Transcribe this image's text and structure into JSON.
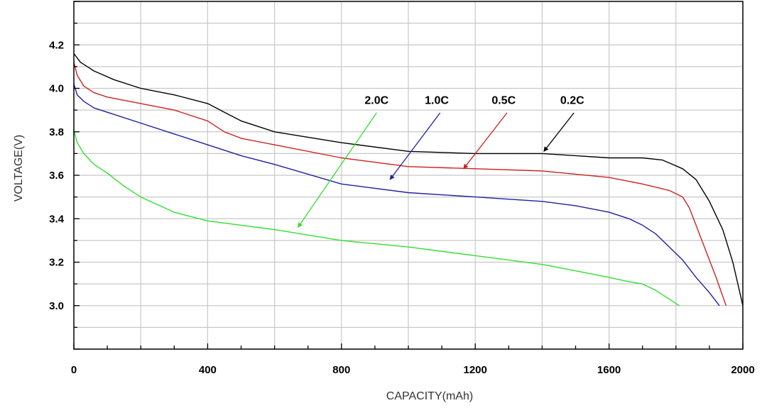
{
  "chart_data": {
    "type": "line",
    "title": "",
    "xlabel": "CAPACITY(mAh)",
    "ylabel": "VOLTAGE(V)",
    "xlim": [
      0,
      2000
    ],
    "ylim": [
      2.8,
      4.4
    ],
    "x_ticks": [
      0,
      400,
      800,
      1200,
      1600,
      2000
    ],
    "x_tick_labels": [
      "0",
      "400",
      "800",
      "1200",
      "1600",
      "2000"
    ],
    "y_ticks": [
      3.0,
      3.2,
      3.4,
      3.6,
      3.8,
      4.0,
      4.2
    ],
    "y_tick_labels": [
      "3.0",
      "3.2",
      "3.4",
      "3.6",
      "3.8",
      "4.0",
      "4.2"
    ],
    "grid": true,
    "legend": "inline labels with arrows",
    "series": [
      {
        "name": "0.2C",
        "color": "#000000",
        "points": [
          [
            0,
            4.16
          ],
          [
            20,
            4.12
          ],
          [
            60,
            4.08
          ],
          [
            120,
            4.04
          ],
          [
            200,
            4.0
          ],
          [
            300,
            3.97
          ],
          [
            400,
            3.93
          ],
          [
            450,
            3.89
          ],
          [
            500,
            3.85
          ],
          [
            600,
            3.8
          ],
          [
            800,
            3.75
          ],
          [
            1000,
            3.71
          ],
          [
            1200,
            3.7
          ],
          [
            1400,
            3.7
          ],
          [
            1500,
            3.69
          ],
          [
            1600,
            3.68
          ],
          [
            1700,
            3.68
          ],
          [
            1760,
            3.67
          ],
          [
            1820,
            3.63
          ],
          [
            1860,
            3.58
          ],
          [
            1900,
            3.48
          ],
          [
            1940,
            3.35
          ],
          [
            1970,
            3.2
          ],
          [
            2000,
            3.0
          ]
        ]
      },
      {
        "name": "0.5C",
        "color": "#cc2222",
        "points": [
          [
            0,
            4.12
          ],
          [
            10,
            4.06
          ],
          [
            30,
            4.01
          ],
          [
            60,
            3.98
          ],
          [
            100,
            3.96
          ],
          [
            200,
            3.93
          ],
          [
            300,
            3.9
          ],
          [
            400,
            3.85
          ],
          [
            450,
            3.8
          ],
          [
            500,
            3.77
          ],
          [
            600,
            3.74
          ],
          [
            800,
            3.68
          ],
          [
            1000,
            3.64
          ],
          [
            1200,
            3.63
          ],
          [
            1400,
            3.62
          ],
          [
            1600,
            3.59
          ],
          [
            1700,
            3.56
          ],
          [
            1780,
            3.53
          ],
          [
            1820,
            3.5
          ],
          [
            1840,
            3.45
          ],
          [
            1860,
            3.37
          ],
          [
            1890,
            3.25
          ],
          [
            1920,
            3.13
          ],
          [
            1950,
            3.0
          ]
        ]
      },
      {
        "name": "1.0C",
        "color": "#1f1fa0",
        "points": [
          [
            0,
            4.02
          ],
          [
            10,
            3.97
          ],
          [
            30,
            3.94
          ],
          [
            60,
            3.91
          ],
          [
            100,
            3.89
          ],
          [
            200,
            3.84
          ],
          [
            300,
            3.79
          ],
          [
            400,
            3.74
          ],
          [
            500,
            3.69
          ],
          [
            600,
            3.65
          ],
          [
            800,
            3.56
          ],
          [
            1000,
            3.52
          ],
          [
            1200,
            3.5
          ],
          [
            1400,
            3.48
          ],
          [
            1500,
            3.46
          ],
          [
            1600,
            3.43
          ],
          [
            1660,
            3.4
          ],
          [
            1700,
            3.37
          ],
          [
            1740,
            3.33
          ],
          [
            1780,
            3.27
          ],
          [
            1820,
            3.21
          ],
          [
            1860,
            3.13
          ],
          [
            1900,
            3.06
          ],
          [
            1930,
            3.0
          ]
        ]
      },
      {
        "name": "2.0C",
        "color": "#33dd33",
        "points": [
          [
            0,
            3.81
          ],
          [
            10,
            3.75
          ],
          [
            30,
            3.7
          ],
          [
            60,
            3.65
          ],
          [
            100,
            3.61
          ],
          [
            150,
            3.55
          ],
          [
            200,
            3.5
          ],
          [
            300,
            3.43
          ],
          [
            400,
            3.39
          ],
          [
            500,
            3.37
          ],
          [
            600,
            3.35
          ],
          [
            800,
            3.3
          ],
          [
            1000,
            3.27
          ],
          [
            1200,
            3.23
          ],
          [
            1400,
            3.19
          ],
          [
            1500,
            3.16
          ],
          [
            1600,
            3.13
          ],
          [
            1660,
            3.11
          ],
          [
            1700,
            3.1
          ],
          [
            1740,
            3.07
          ],
          [
            1780,
            3.03
          ],
          [
            1810,
            3.0
          ]
        ]
      }
    ],
    "annotations": [
      {
        "text": "2.0C",
        "color": "#33dd33",
        "label_at": [
          905,
          4.0
        ],
        "arrow_from": [
          905,
          3.92
        ],
        "arrow_to": [
          670,
          3.36
        ]
      },
      {
        "text": "1.0C",
        "color": "#1f1fa0",
        "label_at": [
          1085,
          4.0
        ],
        "arrow_from": [
          1095,
          3.92
        ],
        "arrow_to": [
          945,
          3.58
        ]
      },
      {
        "text": "0.5C",
        "color": "#cc2222",
        "label_at": [
          1285,
          4.0
        ],
        "arrow_from": [
          1295,
          3.92
        ],
        "arrow_to": [
          1165,
          3.63
        ]
      },
      {
        "text": "0.2C",
        "color": "#000000",
        "label_at": [
          1490,
          4.0
        ],
        "arrow_from": [
          1495,
          3.92
        ],
        "arrow_to": [
          1405,
          3.71
        ]
      }
    ]
  }
}
